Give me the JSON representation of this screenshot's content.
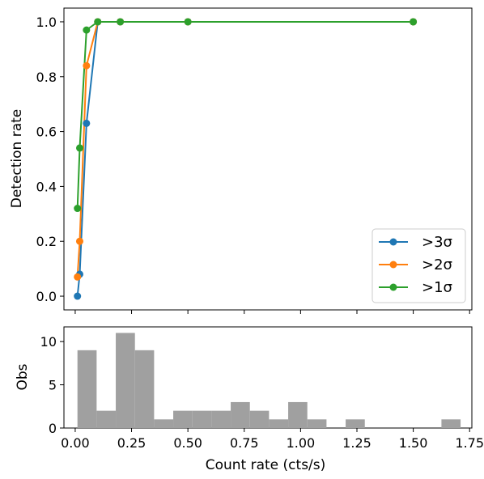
{
  "chart_data": [
    {
      "type": "line",
      "xlabel": "",
      "ylabel": "Detection rate",
      "xlim": [
        -0.05,
        1.76
      ],
      "ylim": [
        -0.05,
        1.05
      ],
      "grid": false,
      "legend_position": "lower-right",
      "x_ticks": [
        0.0,
        0.25,
        0.5,
        0.75,
        1.0,
        1.25,
        1.5,
        1.75
      ],
      "y_ticks": [
        0.0,
        0.2,
        0.4,
        0.6,
        0.8,
        1.0
      ],
      "y_tick_labels": [
        "0.0",
        "0.2",
        "0.4",
        "0.6",
        "0.8",
        "1.0"
      ],
      "series": [
        {
          "name": ">3σ",
          "color": "#1f77b4",
          "x": [
            0.01,
            0.02,
            0.05,
            0.1,
            0.2,
            0.5,
            1.5
          ],
          "y": [
            0.0,
            0.08,
            0.63,
            1.0,
            1.0,
            1.0,
            1.0
          ]
        },
        {
          "name": ">2σ",
          "color": "#ff7f0e",
          "x": [
            0.01,
            0.02,
            0.05,
            0.1,
            0.2,
            0.5,
            1.5
          ],
          "y": [
            0.07,
            0.2,
            0.84,
            1.0,
            1.0,
            1.0,
            1.0
          ]
        },
        {
          "name": ">1σ",
          "color": "#2ca02c",
          "x": [
            0.01,
            0.02,
            0.05,
            0.1,
            0.2,
            0.5,
            1.5
          ],
          "y": [
            0.32,
            0.54,
            0.97,
            1.0,
            1.0,
            1.0,
            1.0
          ]
        }
      ]
    },
    {
      "type": "bar",
      "subtype": "histogram",
      "xlabel": "Count rate (cts/s)",
      "ylabel": "Obs",
      "xlim": [
        -0.05,
        1.76
      ],
      "ylim": [
        0,
        11.7
      ],
      "grid": false,
      "color": "#a0a0a0",
      "x_ticks": [
        0.0,
        0.25,
        0.5,
        0.75,
        1.0,
        1.25,
        1.5,
        1.75
      ],
      "x_tick_labels": [
        "0.00",
        "0.25",
        "0.50",
        "0.75",
        "1.00",
        "1.25",
        "1.50",
        "1.75"
      ],
      "y_ticks": [
        0,
        5,
        10
      ],
      "y_tick_labels": [
        "0",
        "5",
        "10"
      ],
      "bin_edges": [
        0.01,
        0.095,
        0.18,
        0.265,
        0.35,
        0.435,
        0.52,
        0.605,
        0.69,
        0.775,
        0.86,
        0.945,
        1.03,
        1.115,
        1.2,
        1.285,
        1.37,
        1.455,
        1.54,
        1.625,
        1.71
      ],
      "counts": [
        9,
        2,
        11,
        9,
        1,
        2,
        2,
        2,
        3,
        2,
        1,
        3,
        1,
        0,
        1,
        0,
        0,
        0,
        0,
        1
      ]
    }
  ]
}
